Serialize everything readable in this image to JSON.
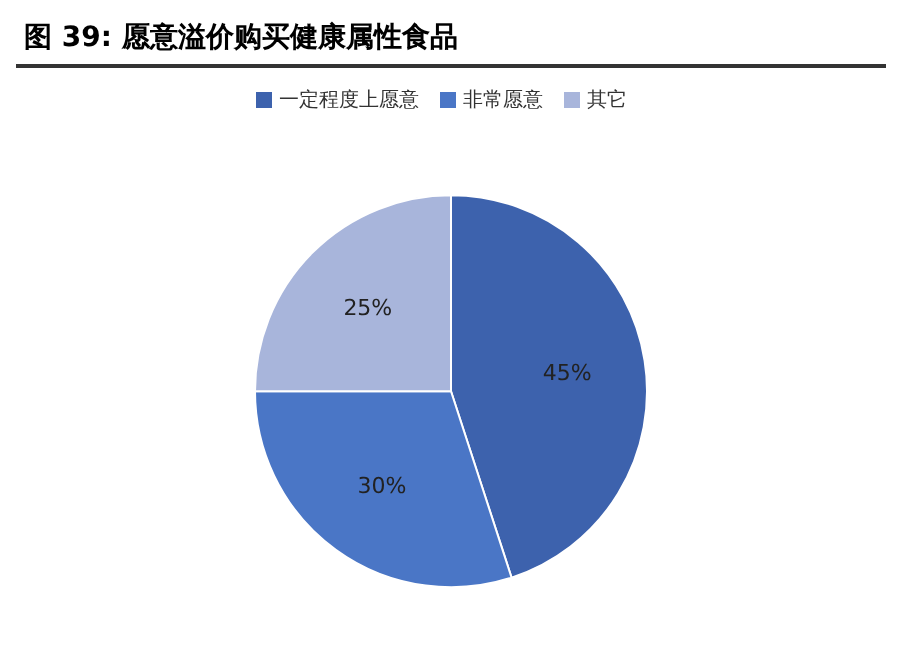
{
  "chart_data": {
    "type": "pie",
    "title": "图 39: 愿意溢价购买健康属性食品",
    "categories": [
      "一定程度上愿意",
      "非常愿意",
      "其它"
    ],
    "values": [
      45,
      30,
      25
    ],
    "colors": [
      "#3d62ad",
      "#4a76c6",
      "#a8b5db"
    ],
    "value_labels": [
      "45%",
      "30%",
      "25%"
    ],
    "legend": "top"
  }
}
